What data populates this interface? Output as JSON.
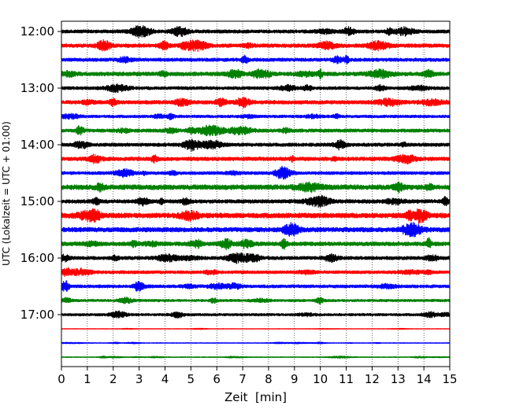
{
  "chart_data": {
    "type": "line",
    "title": "",
    "xlabel": "Zeit  [min]",
    "ylabel": "UTC (Lokalzeit = UTC + 01:00)",
    "xlim": [
      0,
      15
    ],
    "x_ticks": [
      "0",
      "1",
      "2",
      "3",
      "4",
      "5",
      "6",
      "7",
      "8",
      "9",
      "10",
      "11",
      "12",
      "13",
      "14",
      "15"
    ],
    "y_ticks": [
      {
        "label": "12:00",
        "row": 0
      },
      {
        "label": "13:00",
        "row": 4
      },
      {
        "label": "14:00",
        "row": 8
      },
      {
        "label": "15:00",
        "row": 12
      },
      {
        "label": "16:00",
        "row": 16
      },
      {
        "label": "17:00",
        "row": 20
      }
    ],
    "minutes_per_trace": 15,
    "grid": {
      "x": true,
      "y": false,
      "style": "dotted"
    },
    "colors": [
      "#000000",
      "#ff0000",
      "#0000ff",
      "#008000"
    ],
    "traces": [
      {
        "start": "12:00",
        "color": "#000000",
        "amplitude": 0.55
      },
      {
        "start": "12:15",
        "color": "#ff0000",
        "amplitude": 0.6
      },
      {
        "start": "12:30",
        "color": "#0000ff",
        "amplitude": 0.55
      },
      {
        "start": "12:45",
        "color": "#008000",
        "amplitude": 0.65
      },
      {
        "start": "13:00",
        "color": "#000000",
        "amplitude": 0.5
      },
      {
        "start": "13:15",
        "color": "#ff0000",
        "amplitude": 0.6
      },
      {
        "start": "13:30",
        "color": "#0000ff",
        "amplitude": 0.45
      },
      {
        "start": "13:45",
        "color": "#008000",
        "amplitude": 0.55
      },
      {
        "start": "14:00",
        "color": "#000000",
        "amplitude": 0.55
      },
      {
        "start": "14:15",
        "color": "#ff0000",
        "amplitude": 0.6
      },
      {
        "start": "14:30",
        "color": "#0000ff",
        "amplitude": 0.5
      },
      {
        "start": "14:45",
        "color": "#008000",
        "amplitude": 0.8
      },
      {
        "start": "15:00",
        "color": "#000000",
        "amplitude": 0.6
      },
      {
        "start": "15:15",
        "color": "#ff0000",
        "amplitude": 0.8
      },
      {
        "start": "15:30",
        "color": "#0000ff",
        "amplitude": 0.75
      },
      {
        "start": "15:45",
        "color": "#008000",
        "amplitude": 0.65
      },
      {
        "start": "16:00",
        "color": "#000000",
        "amplitude": 0.55
      },
      {
        "start": "16:15",
        "color": "#ff0000",
        "amplitude": 0.5
      },
      {
        "start": "16:30",
        "color": "#0000ff",
        "amplitude": 0.5
      },
      {
        "start": "16:45",
        "color": "#008000",
        "amplitude": 0.4
      },
      {
        "start": "17:00",
        "color": "#000000",
        "amplitude": 0.4
      },
      {
        "start": "17:15",
        "color": "#ff0000",
        "amplitude": 0.08
      },
      {
        "start": "17:30",
        "color": "#0000ff",
        "amplitude": 0.1
      },
      {
        "start": "17:45",
        "color": "#008000",
        "amplitude": 0.12
      }
    ]
  }
}
